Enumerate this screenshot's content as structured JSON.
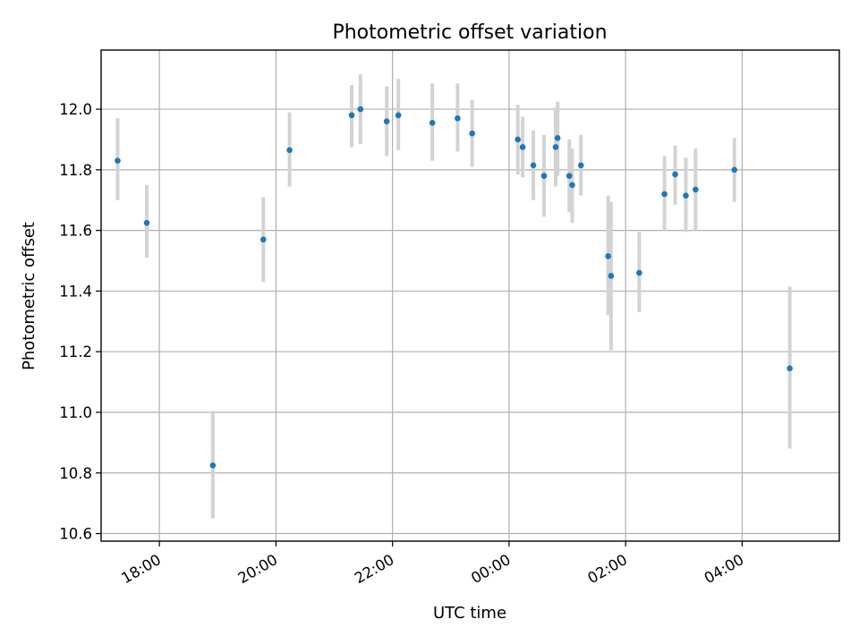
{
  "chart_data": {
    "type": "scatter",
    "title": "Photometric offset variation",
    "xlabel": "UTC time",
    "ylabel": "Photometric offset",
    "x_unit": "time of day (UTC), starting evening and continuing past midnight",
    "xlim": [
      "17:00",
      "05:40"
    ],
    "ylim": [
      10.575,
      12.195
    ],
    "grid": true,
    "x_ticks": [
      "18:00",
      "20:00",
      "22:00",
      "00:00",
      "02:00",
      "04:00"
    ],
    "y_ticks": [
      "10.6",
      "10.8",
      "11.0",
      "11.2",
      "11.4",
      "11.6",
      "11.8",
      "12.0"
    ],
    "colors": {
      "point": "#1f77b4",
      "errorbar": "#d3d3d3",
      "grid": "#b0b0b0"
    },
    "points": [
      {
        "t": "17:17",
        "y": 11.83,
        "lo": 11.7,
        "hi": 11.97
      },
      {
        "t": "17:47",
        "y": 11.625,
        "lo": 11.51,
        "hi": 11.75
      },
      {
        "t": "18:55",
        "y": 10.825,
        "lo": 10.65,
        "hi": 11.005
      },
      {
        "t": "19:47",
        "y": 11.57,
        "lo": 11.43,
        "hi": 11.71
      },
      {
        "t": "20:14",
        "y": 11.865,
        "lo": 11.745,
        "hi": 11.99
      },
      {
        "t": "21:18",
        "y": 11.98,
        "lo": 11.875,
        "hi": 12.08
      },
      {
        "t": "21:27",
        "y": 12.0,
        "lo": 11.885,
        "hi": 12.115
      },
      {
        "t": "21:54",
        "y": 11.96,
        "lo": 11.845,
        "hi": 12.075
      },
      {
        "t": "22:06",
        "y": 11.98,
        "lo": 11.865,
        "hi": 12.1
      },
      {
        "t": "22:41",
        "y": 11.955,
        "lo": 11.83,
        "hi": 12.085
      },
      {
        "t": "23:07",
        "y": 11.97,
        "lo": 11.86,
        "hi": 12.085
      },
      {
        "t": "23:22",
        "y": 11.92,
        "lo": 11.81,
        "hi": 12.03
      },
      {
        "t": "00:09",
        "y": 11.9,
        "lo": 11.785,
        "hi": 12.015
      },
      {
        "t": "00:14",
        "y": 11.875,
        "lo": 11.775,
        "hi": 11.975
      },
      {
        "t": "00:25",
        "y": 11.815,
        "lo": 11.7,
        "hi": 11.93
      },
      {
        "t": "00:36",
        "y": 11.78,
        "lo": 11.645,
        "hi": 11.915
      },
      {
        "t": "00:48",
        "y": 11.875,
        "lo": 11.745,
        "hi": 12.005
      },
      {
        "t": "00:50",
        "y": 11.905,
        "lo": 11.78,
        "hi": 12.025
      },
      {
        "t": "01:02",
        "y": 11.78,
        "lo": 11.66,
        "hi": 11.9
      },
      {
        "t": "01:05",
        "y": 11.75,
        "lo": 11.625,
        "hi": 11.87
      },
      {
        "t": "01:14",
        "y": 11.815,
        "lo": 11.715,
        "hi": 11.915
      },
      {
        "t": "01:42",
        "y": 11.515,
        "lo": 11.32,
        "hi": 11.715
      },
      {
        "t": "01:45",
        "y": 11.45,
        "lo": 11.205,
        "hi": 11.695
      },
      {
        "t": "02:14",
        "y": 11.46,
        "lo": 11.33,
        "hi": 11.595
      },
      {
        "t": "02:40",
        "y": 11.72,
        "lo": 11.6,
        "hi": 11.845
      },
      {
        "t": "02:51",
        "y": 11.785,
        "lo": 11.685,
        "hi": 11.88
      },
      {
        "t": "03:02",
        "y": 11.715,
        "lo": 11.595,
        "hi": 11.84
      },
      {
        "t": "03:12",
        "y": 11.735,
        "lo": 11.6,
        "hi": 11.87
      },
      {
        "t": "03:52",
        "y": 11.8,
        "lo": 11.695,
        "hi": 11.905
      },
      {
        "t": "04:49",
        "y": 11.145,
        "lo": 10.88,
        "hi": 11.415
      }
    ]
  }
}
